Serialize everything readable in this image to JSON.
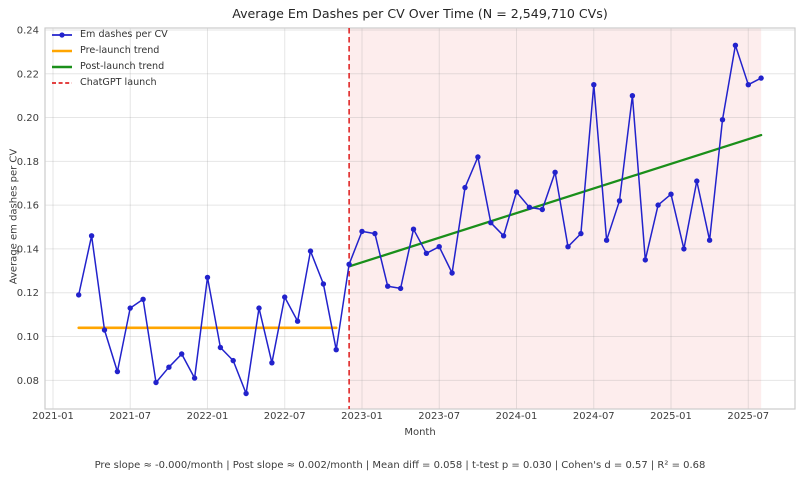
{
  "chart_data": {
    "type": "line",
    "title": "Average Em Dashes per CV Over Time (N = 2,549,710 CVs)",
    "xlabel": "Month",
    "ylabel": "Average em dashes per CV",
    "footnote": "Pre slope ≈ -0.000/month | Post slope ≈ 0.002/month | Mean diff = 0.058 | t-test p = 0.030 | Cohen's d = 0.57 | R² = 0.68",
    "grid": true,
    "legend_position": "upper left",
    "ylim": [
      0.0669,
      0.2409
    ],
    "xlim_month_index": [
      -0.62,
      57.63
    ],
    "x_ticks": [
      "2021-01",
      "2021-07",
      "2022-01",
      "2022-07",
      "2023-01",
      "2023-07",
      "2024-01",
      "2024-07",
      "2025-01",
      "2025-07"
    ],
    "y_ticks": [
      "0.08",
      "0.10",
      "0.12",
      "0.14",
      "0.16",
      "0.18",
      "0.20",
      "0.22",
      "0.24"
    ],
    "series": [
      {
        "name": "Em dashes per CV",
        "color": "#2222cc",
        "marker": "o",
        "months": [
          "2021-03",
          "2021-04",
          "2021-05",
          "2021-06",
          "2021-07",
          "2021-08",
          "2021-09",
          "2021-10",
          "2021-11",
          "2021-12",
          "2022-01",
          "2022-02",
          "2022-03",
          "2022-04",
          "2022-05",
          "2022-06",
          "2022-07",
          "2022-08",
          "2022-09",
          "2022-10",
          "2022-11",
          "2022-12",
          "2023-01",
          "2023-02",
          "2023-03",
          "2023-04",
          "2023-05",
          "2023-06",
          "2023-07",
          "2023-08",
          "2023-09",
          "2023-10",
          "2023-11",
          "2023-12",
          "2024-01",
          "2024-02",
          "2024-03",
          "2024-04",
          "2024-05",
          "2024-06",
          "2024-07",
          "2024-08",
          "2024-09",
          "2024-10",
          "2024-11",
          "2024-12",
          "2025-01",
          "2025-02",
          "2025-03",
          "2025-04",
          "2025-05",
          "2025-06",
          "2025-07",
          "2025-08"
        ],
        "values": [
          0.119,
          0.146,
          0.103,
          0.084,
          0.113,
          0.117,
          0.079,
          0.086,
          0.092,
          0.081,
          0.127,
          0.095,
          0.089,
          0.074,
          0.113,
          0.088,
          0.118,
          0.107,
          0.139,
          0.124,
          0.094,
          0.133,
          0.148,
          0.147,
          0.123,
          0.122,
          0.149,
          0.138,
          0.141,
          0.129,
          0.168,
          0.182,
          0.152,
          0.146,
          0.166,
          0.159,
          0.158,
          0.175,
          0.141,
          0.147,
          0.215,
          0.144,
          0.162,
          0.21,
          0.135,
          0.16,
          0.165,
          0.14,
          0.171,
          0.144,
          0.199,
          0.233,
          0.215,
          0.218
        ]
      }
    ],
    "trend_lines": [
      {
        "name": "Pre-launch trend",
        "color": "#ffa500",
        "width": 2.6,
        "from": {
          "month": "2021-03",
          "value": 0.104
        },
        "to": {
          "month": "2022-11",
          "value": 0.104
        }
      },
      {
        "name": "Post-launch trend",
        "color": "#1a8f1a",
        "width": 2.3,
        "from": {
          "month": "2022-12",
          "value": 0.132
        },
        "to": {
          "month": "2025-08",
          "value": 0.192
        }
      }
    ],
    "launch_line": {
      "name": "ChatGPT launch",
      "month": "2022-12",
      "color": "#e02828",
      "style": "dashed"
    },
    "shaded_region": {
      "from_month": "2022-12",
      "to_month": "2025-08",
      "color": "rgba(229,60,55,0.09)"
    },
    "legend": [
      {
        "label": "Em dashes per CV",
        "color": "#2222cc",
        "style": "line-marker"
      },
      {
        "label": "Pre-launch trend",
        "color": "#ffa500",
        "style": "line"
      },
      {
        "label": "Post-launch trend",
        "color": "#1a8f1a",
        "style": "line"
      },
      {
        "label": "ChatGPT launch",
        "color": "#e02828",
        "style": "dashed"
      }
    ],
    "colors": {
      "grid": "rgba(140,140,140,0.22)",
      "spine": "#cccccc",
      "tick_label": "#3d3d3d",
      "title": "#262626"
    }
  }
}
